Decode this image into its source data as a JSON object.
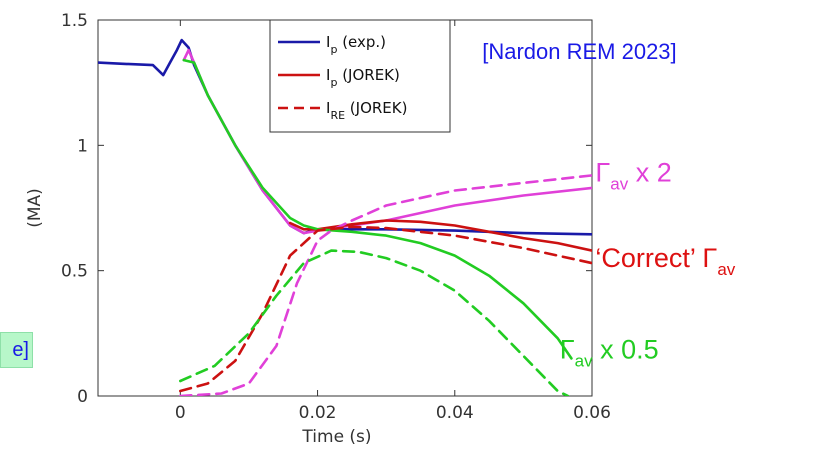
{
  "chart_data": {
    "type": "line",
    "xlabel": "Time (s)",
    "ylabel": "(MA)",
    "xlim": [
      -0.012,
      0.06
    ],
    "ylim": [
      0,
      1.5
    ],
    "xticks": [
      "0",
      "0.02",
      "0.04",
      "0.06"
    ],
    "yticks": [
      "0",
      "0.5",
      "1",
      "1.5"
    ],
    "x_tick_values": [
      0,
      0.02,
      0.04,
      0.06
    ],
    "y_tick_values": [
      0,
      0.5,
      1,
      1.5
    ],
    "grid": false,
    "legend_position": "top-center",
    "legend": [
      {
        "main": "I",
        "sub": "p",
        "rest": " (exp.)",
        "color": "#1a1aa8",
        "dash": false
      },
      {
        "main": "I",
        "sub": "p",
        "rest": " (JOREK)",
        "color": "#cc1111",
        "dash": false
      },
      {
        "main": "I",
        "sub": "RE",
        "rest": " (JOREK)",
        "color": "#cc1111",
        "dash": true
      }
    ],
    "series": [
      {
        "name": "I_p (exp.)",
        "color": "#1a1aa8",
        "dash": false,
        "x": [
          -0.012,
          -0.008,
          -0.004,
          -0.0025,
          -0.0015,
          -0.0005,
          0.0002,
          0.0012,
          0.002,
          0.004,
          0.008,
          0.012,
          0.016,
          0.018,
          0.02,
          0.03,
          0.04,
          0.05,
          0.06
        ],
        "y": [
          1.33,
          1.325,
          1.32,
          1.28,
          1.33,
          1.38,
          1.42,
          1.39,
          1.32,
          1.2,
          1.0,
          0.82,
          0.68,
          0.65,
          0.665,
          0.665,
          0.66,
          0.65,
          0.645
        ]
      },
      {
        "name": "I_p (JOREK), Γ_av x 2",
        "color": "#e040d8",
        "dash": false,
        "x": [
          0.0005,
          0.0012,
          0.002,
          0.004,
          0.008,
          0.012,
          0.016,
          0.018,
          0.02,
          0.025,
          0.03,
          0.04,
          0.05,
          0.06
        ],
        "y": [
          1.34,
          1.38,
          1.33,
          1.2,
          1.0,
          0.82,
          0.68,
          0.65,
          0.66,
          0.68,
          0.7,
          0.76,
          0.8,
          0.83
        ]
      },
      {
        "name": "I_p (JOREK), 'Correct' Γ_av",
        "color": "#cc1111",
        "dash": false,
        "x": [
          0.016,
          0.018,
          0.02,
          0.025,
          0.03,
          0.035,
          0.04,
          0.045,
          0.05,
          0.055,
          0.06
        ],
        "y": [
          0.69,
          0.665,
          0.665,
          0.685,
          0.7,
          0.695,
          0.68,
          0.655,
          0.63,
          0.61,
          0.58
        ]
      },
      {
        "name": "I_p (JOREK), Γ_av x 0.5",
        "color": "#22cc22",
        "dash": false,
        "x": [
          0.0005,
          0.002,
          0.004,
          0.008,
          0.012,
          0.016,
          0.018,
          0.02,
          0.025,
          0.03,
          0.035,
          0.04,
          0.045,
          0.05,
          0.055,
          0.057
        ],
        "y": [
          1.34,
          1.33,
          1.2,
          1.0,
          0.83,
          0.71,
          0.68,
          0.665,
          0.655,
          0.64,
          0.61,
          0.56,
          0.48,
          0.37,
          0.23,
          0.15
        ]
      },
      {
        "name": "I_RE (JOREK), Γ_av x 2",
        "color": "#e040d8",
        "dash": true,
        "x": [
          0.0,
          0.006,
          0.01,
          0.014,
          0.017,
          0.02,
          0.022,
          0.025,
          0.03,
          0.04,
          0.05,
          0.06
        ],
        "y": [
          0.0,
          0.01,
          0.05,
          0.2,
          0.45,
          0.62,
          0.66,
          0.7,
          0.76,
          0.82,
          0.85,
          0.88
        ]
      },
      {
        "name": "I_RE (JOREK), 'Correct' Γ_av",
        "color": "#cc1111",
        "dash": true,
        "x": [
          0.0,
          0.004,
          0.008,
          0.012,
          0.016,
          0.02,
          0.025,
          0.03,
          0.04,
          0.05,
          0.06
        ],
        "y": [
          0.02,
          0.05,
          0.14,
          0.33,
          0.56,
          0.66,
          0.675,
          0.67,
          0.64,
          0.59,
          0.53
        ]
      },
      {
        "name": "I_RE (JOREK), Γ_av x 0.5",
        "color": "#22cc22",
        "dash": true,
        "x": [
          0.0,
          0.005,
          0.01,
          0.014,
          0.018,
          0.022,
          0.026,
          0.03,
          0.035,
          0.04,
          0.045,
          0.05,
          0.055,
          0.0565
        ],
        "y": [
          0.06,
          0.12,
          0.25,
          0.4,
          0.53,
          0.58,
          0.575,
          0.55,
          0.5,
          0.42,
          0.3,
          0.16,
          0.02,
          0.0
        ]
      }
    ],
    "annotations": [
      {
        "parts": [
          {
            "t": "[Nardon REM 2023]"
          }
        ],
        "color": "#1a1ae6",
        "at": [
          0.044,
          1.345
        ],
        "size": 22
      },
      {
        "parts": [
          {
            "t": "Γ"
          },
          {
            "t": "av",
            "sub": true
          },
          {
            "t": " x 2"
          }
        ],
        "color": "#e040d8",
        "at": [
          0.0605,
          0.855
        ],
        "size": 27
      },
      {
        "parts": [
          {
            "t": "‘Correct’ Γ"
          },
          {
            "t": "av",
            "sub": true
          }
        ],
        "color": "#dd1111",
        "at": [
          0.0605,
          0.515
        ],
        "size": 27
      },
      {
        "parts": [
          {
            "t": "Γ"
          },
          {
            "t": "av",
            "sub": true
          },
          {
            "t": " x 0.5"
          }
        ],
        "color": "#22cc22",
        "at": [
          0.0553,
          0.15
        ],
        "size": 27
      }
    ]
  },
  "side_note": {
    "text": "e]"
  }
}
